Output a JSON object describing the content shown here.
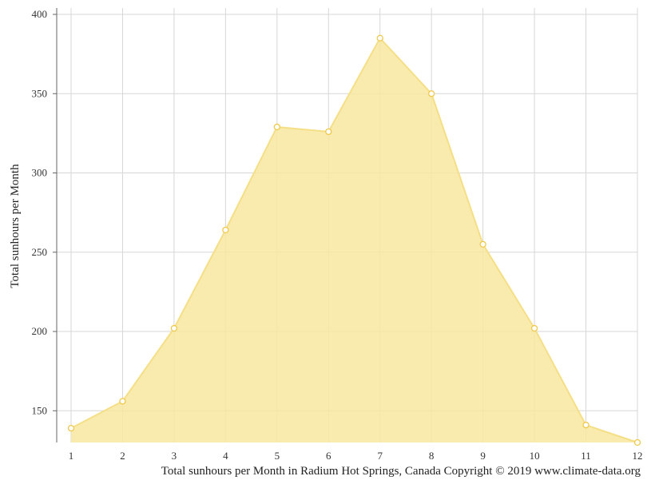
{
  "chart_data": {
    "type": "area",
    "x": [
      1,
      2,
      3,
      4,
      5,
      6,
      7,
      8,
      9,
      10,
      11,
      12
    ],
    "series": [
      {
        "values": [
          139,
          156,
          202,
          264,
          329,
          326,
          385,
          350,
          255,
          202,
          141,
          130
        ]
      }
    ],
    "xticks": [
      "1",
      "2",
      "3",
      "4",
      "5",
      "6",
      "7",
      "8",
      "9",
      "10",
      "11",
      "12"
    ],
    "yticks": [
      "150",
      "200",
      "250",
      "300",
      "350",
      "400"
    ],
    "ylabel": "Total sunhours per Month",
    "xlabel": "",
    "ylim": [
      130,
      400
    ],
    "xlim": [
      1,
      12
    ],
    "grid": true,
    "legend": "none",
    "colors": {
      "fill": "#f8e7a0",
      "line": "#f5df86",
      "marker_stroke": "#efc94a",
      "grid": "#d7d7d7"
    }
  },
  "caption": "Total sunhours per Month in Radium Hot Springs, Canada Copyright © 2019 www.climate-data.org"
}
